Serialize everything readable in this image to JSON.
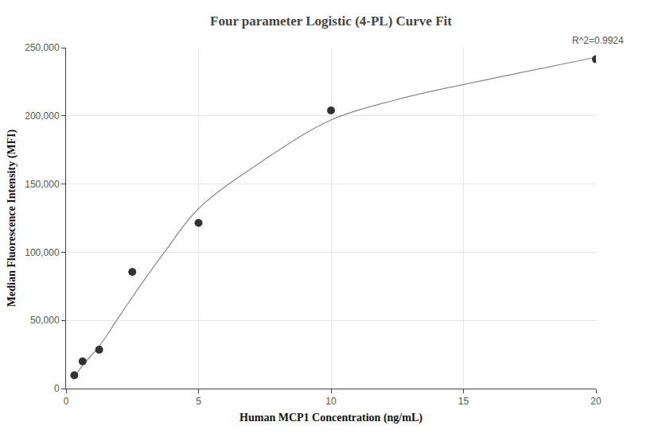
{
  "chart_data": {
    "type": "scatter",
    "title": "Four parameter Logistic (4-PL) Curve Fit",
    "x_label": "Human MCP1 Concentration (ng/mL)",
    "y_label": "Median Fluorescence Intensity (MFI)",
    "annotations": [
      "R^2=0.9924"
    ],
    "series": [
      {
        "type": "scatter",
        "marker": "circle",
        "color": "#333333",
        "x": [
          0.313,
          0.625,
          1.25,
          2.5,
          5,
          10,
          20
        ],
        "values": [
          9800,
          20000,
          28500,
          85500,
          121500,
          204000,
          241500
        ]
      },
      {
        "type": "line",
        "line_style": "solid",
        "color": "#888888",
        "x": [
          0.313,
          0.625,
          1.25,
          1.875,
          2.5,
          3.75,
          5,
          7.5,
          10,
          12.5,
          15,
          17.5,
          20
        ],
        "values": [
          8500,
          17000,
          31000,
          49000,
          67000,
          101000,
          132000,
          168000,
          197000,
          212000,
          223000,
          233000,
          243000
        ]
      }
    ],
    "xlim": [
      0,
      20
    ],
    "xticks": [
      0,
      5,
      10,
      15,
      20
    ],
    "ylim": [
      0,
      250000
    ],
    "yticks": [
      0,
      {
        "value": 50000,
        "label": "50,000"
      },
      {
        "value": 100000,
        "label": "100,000"
      },
      {
        "value": 150000,
        "label": "150,000"
      },
      {
        "value": 200000,
        "label": "200,000"
      },
      {
        "value": 250000,
        "label": "250,000"
      }
    ],
    "grid": true
  }
}
